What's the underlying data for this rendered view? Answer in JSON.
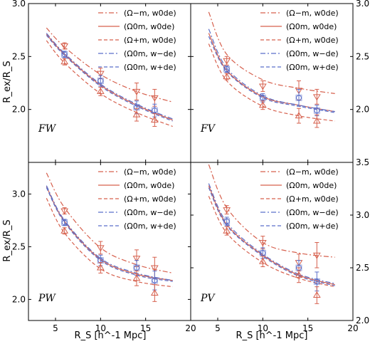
{
  "figure": {
    "xlabel": "R_S [h^-1 Mpc]",
    "ylabel": "R_ex/R_S",
    "colors": {
      "red": "#d6604d",
      "blue": "#5b6fc9",
      "frame": "#000000"
    }
  },
  "legend": [
    {
      "label": "(Ω−m, w0de)",
      "color": "#d6604d",
      "dash": "dashdot"
    },
    {
      "label": "(Ω0m, w0de)",
      "color": "#d6604d",
      "dash": "solid"
    },
    {
      "label": "(Ω+m, w0de)",
      "color": "#d6604d",
      "dash": "dashed"
    },
    {
      "label": "(Ω0m, w−de)",
      "color": "#5b6fc9",
      "dash": "dashdot"
    },
    {
      "label": "(Ω0m, w+de)",
      "color": "#5b6fc9",
      "dash": "dashed"
    }
  ],
  "chart_data": [
    {
      "type": "line",
      "panel": "FW",
      "label": "FW",
      "xlim": [
        2,
        20
      ],
      "ylim": [
        1.5,
        3.0
      ],
      "xticks": [
        5,
        10,
        15,
        20
      ],
      "yticks": [
        2.0,
        2.5,
        3.0
      ],
      "ytick_side": "left",
      "series": [
        {
          "name": "(Ω−m, w0de)",
          "x": [
            4,
            6,
            10,
            14,
            18
          ],
          "y": [
            2.77,
            2.59,
            2.33,
            2.17,
            2.07
          ]
        },
        {
          "name": "(Ω0m, w0de)",
          "x": [
            4,
            6,
            10,
            14,
            18
          ],
          "y": [
            2.71,
            2.52,
            2.23,
            2.04,
            1.9
          ]
        },
        {
          "name": "(Ω+m, w0de)",
          "x": [
            4,
            6,
            10,
            14,
            18
          ],
          "y": [
            2.65,
            2.44,
            2.15,
            1.97,
            1.84
          ]
        },
        {
          "name": "(Ω0m, w−de)",
          "x": [
            4,
            6,
            10,
            14,
            18
          ],
          "y": [
            2.72,
            2.53,
            2.24,
            2.05,
            1.91
          ]
        },
        {
          "name": "(Ω0m, w+de)",
          "x": [
            4,
            6,
            10,
            14,
            18
          ],
          "y": [
            2.7,
            2.51,
            2.22,
            2.03,
            1.89
          ]
        }
      ],
      "points": [
        {
          "x": 6,
          "y": 2.6,
          "err": 0.03,
          "marker": "tri-down",
          "color": "#d6604d"
        },
        {
          "x": 6,
          "y": 2.52,
          "err": 0.03,
          "marker": "circle",
          "color": "#5b6fc9"
        },
        {
          "x": 6,
          "y": 2.45,
          "err": 0.03,
          "marker": "tri-up",
          "color": "#d6604d"
        },
        {
          "x": 10,
          "y": 2.34,
          "err": 0.05,
          "marker": "tri-down",
          "color": "#d6604d"
        },
        {
          "x": 10,
          "y": 2.27,
          "err": 0.05,
          "marker": "circle",
          "color": "#5b6fc9"
        },
        {
          "x": 10,
          "y": 2.17,
          "err": 0.04,
          "marker": "tri-up",
          "color": "#d6604d"
        },
        {
          "x": 14,
          "y": 2.17,
          "err": 0.08,
          "marker": "tri-down",
          "color": "#d6604d"
        },
        {
          "x": 14,
          "y": 2.02,
          "err": 0.06,
          "marker": "circle",
          "color": "#5b6fc9"
        },
        {
          "x": 14,
          "y": 1.95,
          "err": 0.06,
          "marker": "tri-up",
          "color": "#d6604d"
        },
        {
          "x": 16,
          "y": 2.11,
          "err": 0.08,
          "marker": "tri-down",
          "color": "#d6604d"
        },
        {
          "x": 16,
          "y": 1.99,
          "err": 0.06,
          "marker": "circle",
          "color": "#5b6fc9"
        },
        {
          "x": 16,
          "y": 1.9,
          "err": 0.06,
          "marker": "tri-up",
          "color": "#d6604d"
        }
      ]
    },
    {
      "type": "line",
      "panel": "FV",
      "label": "FV",
      "xlim": [
        2,
        20
      ],
      "ylim": [
        1.5,
        3.0
      ],
      "xticks": [
        5,
        10,
        15,
        20
      ],
      "yticks": [
        2.0,
        2.5,
        3.0
      ],
      "ytick_side": "right",
      "series": [
        {
          "name": "(Ω−m, w0de)",
          "x": [
            4,
            6,
            10,
            14,
            18
          ],
          "y": [
            2.92,
            2.52,
            2.28,
            2.2,
            2.15
          ]
        },
        {
          "name": "(Ω0m, w0de)",
          "x": [
            4,
            6,
            10,
            14,
            18
          ],
          "y": [
            2.72,
            2.37,
            2.12,
            2.04,
            1.98
          ]
        },
        {
          "name": "(Ω+m, w0de)",
          "x": [
            4,
            6,
            10,
            14,
            18
          ],
          "y": [
            2.62,
            2.27,
            2.03,
            1.94,
            1.89
          ]
        },
        {
          "name": "(Ω0m, w−de)",
          "x": [
            4,
            6,
            10,
            14,
            18
          ],
          "y": [
            2.76,
            2.39,
            2.13,
            2.04,
            1.98
          ]
        },
        {
          "name": "(Ω0m, w+de)",
          "x": [
            4,
            6,
            10,
            14,
            18
          ],
          "y": [
            2.69,
            2.36,
            2.11,
            2.03,
            1.97
          ]
        }
      ],
      "points": [
        {
          "x": 6,
          "y": 2.46,
          "err": 0.04,
          "marker": "tri-down",
          "color": "#d6604d"
        },
        {
          "x": 6,
          "y": 2.38,
          "err": 0.03,
          "marker": "circle",
          "color": "#5b6fc9"
        },
        {
          "x": 6,
          "y": 2.31,
          "err": 0.03,
          "marker": "tri-up",
          "color": "#d6604d"
        },
        {
          "x": 10,
          "y": 2.22,
          "err": 0.05,
          "marker": "tri-down",
          "color": "#d6604d"
        },
        {
          "x": 10,
          "y": 2.11,
          "err": 0.04,
          "marker": "circle",
          "color": "#5b6fc9"
        },
        {
          "x": 10,
          "y": 2.04,
          "err": 0.04,
          "marker": "tri-up",
          "color": "#d6604d"
        },
        {
          "x": 14,
          "y": 2.18,
          "err": 0.09,
          "marker": "tri-down",
          "color": "#d6604d"
        },
        {
          "x": 14,
          "y": 2.11,
          "err": 0.08,
          "marker": "circle",
          "color": "#5b6fc9"
        },
        {
          "x": 14,
          "y": 1.94,
          "err": 0.07,
          "marker": "tri-up",
          "color": "#d6604d"
        },
        {
          "x": 16,
          "y": 2.12,
          "err": 0.07,
          "marker": "tri-down",
          "color": "#d6604d"
        },
        {
          "x": 16,
          "y": 1.99,
          "err": 0.05,
          "marker": "circle",
          "color": "#5b6fc9"
        },
        {
          "x": 16,
          "y": 1.89,
          "err": 0.06,
          "marker": "tri-up",
          "color": "#d6604d"
        }
      ]
    },
    {
      "type": "line",
      "panel": "PW",
      "label": "PW",
      "xlim": [
        2,
        20
      ],
      "ylim": [
        1.8,
        3.3
      ],
      "xticks": [
        5,
        10,
        15,
        20
      ],
      "yticks": [
        2.0,
        2.5,
        3.0
      ],
      "ytick_side": "left",
      "series": [
        {
          "name": "(Ω−m, w0de)",
          "x": [
            4,
            6,
            10,
            14,
            18
          ],
          "y": [
            3.2,
            2.87,
            2.49,
            2.33,
            2.25
          ]
        },
        {
          "name": "(Ω0m, w0de)",
          "x": [
            4,
            6,
            10,
            14,
            18
          ],
          "y": [
            3.07,
            2.74,
            2.38,
            2.24,
            2.18
          ]
        },
        {
          "name": "(Ω+m, w0de)",
          "x": [
            4,
            6,
            10,
            14,
            18
          ],
          "y": [
            2.96,
            2.63,
            2.29,
            2.17,
            2.12
          ]
        },
        {
          "name": "(Ω0m, w−de)",
          "x": [
            4,
            6,
            10,
            14,
            18
          ],
          "y": [
            3.08,
            2.75,
            2.39,
            2.25,
            2.18
          ]
        },
        {
          "name": "(Ω0m, w+de)",
          "x": [
            4,
            6,
            10,
            14,
            18
          ],
          "y": [
            3.06,
            2.73,
            2.37,
            2.23,
            2.17
          ]
        }
      ],
      "points": [
        {
          "x": 6,
          "y": 2.84,
          "err": 0.03,
          "marker": "tri-down",
          "color": "#d6604d"
        },
        {
          "x": 6,
          "y": 2.73,
          "err": 0.03,
          "marker": "circle",
          "color": "#5b6fc9"
        },
        {
          "x": 6,
          "y": 2.65,
          "err": 0.03,
          "marker": "tri-up",
          "color": "#d6604d"
        },
        {
          "x": 10,
          "y": 2.49,
          "err": 0.06,
          "marker": "tri-down",
          "color": "#d6604d"
        },
        {
          "x": 10,
          "y": 2.37,
          "err": 0.05,
          "marker": "circle",
          "color": "#5b6fc9"
        },
        {
          "x": 10,
          "y": 2.3,
          "err": 0.05,
          "marker": "tri-up",
          "color": "#d6604d"
        },
        {
          "x": 14,
          "y": 2.39,
          "err": 0.08,
          "marker": "tri-down",
          "color": "#d6604d"
        },
        {
          "x": 14,
          "y": 2.3,
          "err": 0.07,
          "marker": "circle",
          "color": "#5b6fc9"
        },
        {
          "x": 14,
          "y": 2.2,
          "err": 0.07,
          "marker": "tri-up",
          "color": "#d6604d"
        },
        {
          "x": 16,
          "y": 2.3,
          "err": 0.1,
          "marker": "tri-down",
          "color": "#d6604d"
        },
        {
          "x": 16,
          "y": 2.18,
          "err": 0.09,
          "marker": "circle",
          "color": "#5b6fc9"
        },
        {
          "x": 16,
          "y": 2.06,
          "err": 0.08,
          "marker": "tri-up",
          "color": "#d6604d"
        }
      ]
    },
    {
      "type": "line",
      "panel": "PV",
      "label": "PV",
      "xlim": [
        2,
        20
      ],
      "ylim": [
        2.0,
        3.5
      ],
      "xticks": [
        5,
        10,
        15,
        20
      ],
      "yticks": [
        2.0,
        2.5,
        3.0,
        3.5
      ],
      "ytick_side": "right",
      "series": [
        {
          "name": "(Ω−m, w0de)",
          "x": [
            4,
            6,
            10,
            14,
            18
          ],
          "y": [
            3.48,
            3.07,
            2.74,
            2.64,
            2.6
          ]
        },
        {
          "name": "(Ω0m, w0de)",
          "x": [
            4,
            6,
            10,
            14,
            18
          ],
          "y": [
            3.28,
            2.91,
            2.62,
            2.43,
            2.34
          ]
        },
        {
          "name": "(Ω+m, w0de)",
          "x": [
            4,
            6,
            10,
            14,
            18
          ],
          "y": [
            3.18,
            2.83,
            2.55,
            2.4,
            2.32
          ]
        },
        {
          "name": "(Ω0m, w−de)",
          "x": [
            4,
            6,
            10,
            14,
            18
          ],
          "y": [
            3.3,
            2.93,
            2.63,
            2.44,
            2.35
          ]
        },
        {
          "name": "(Ω0m, w+de)",
          "x": [
            4,
            6,
            10,
            14,
            18
          ],
          "y": [
            3.26,
            2.9,
            2.61,
            2.42,
            2.33
          ]
        }
      ],
      "points": [
        {
          "x": 6,
          "y": 3.05,
          "err": 0.04,
          "marker": "tri-down",
          "color": "#d6604d"
        },
        {
          "x": 6,
          "y": 2.94,
          "err": 0.04,
          "marker": "circle",
          "color": "#5b6fc9"
        },
        {
          "x": 6,
          "y": 2.85,
          "err": 0.04,
          "marker": "tri-up",
          "color": "#d6604d"
        },
        {
          "x": 10,
          "y": 2.74,
          "err": 0.06,
          "marker": "tri-down",
          "color": "#d6604d"
        },
        {
          "x": 10,
          "y": 2.64,
          "err": 0.05,
          "marker": "circle",
          "color": "#5b6fc9"
        },
        {
          "x": 10,
          "y": 2.56,
          "err": 0.05,
          "marker": "tri-up",
          "color": "#d6604d"
        },
        {
          "x": 14,
          "y": 2.55,
          "err": 0.08,
          "marker": "tri-down",
          "color": "#d6604d"
        },
        {
          "x": 14,
          "y": 2.5,
          "err": 0.07,
          "marker": "circle",
          "color": "#5b6fc9"
        },
        {
          "x": 14,
          "y": 2.43,
          "err": 0.07,
          "marker": "tri-up",
          "color": "#d6604d"
        },
        {
          "x": 16,
          "y": 2.62,
          "err": 0.12,
          "marker": "tri-down",
          "color": "#d6604d"
        },
        {
          "x": 16,
          "y": 2.37,
          "err": 0.09,
          "marker": "circle",
          "color": "#5b6fc9"
        },
        {
          "x": 16,
          "y": 2.24,
          "err": 0.08,
          "marker": "tri-up",
          "color": "#d6604d"
        }
      ]
    }
  ]
}
